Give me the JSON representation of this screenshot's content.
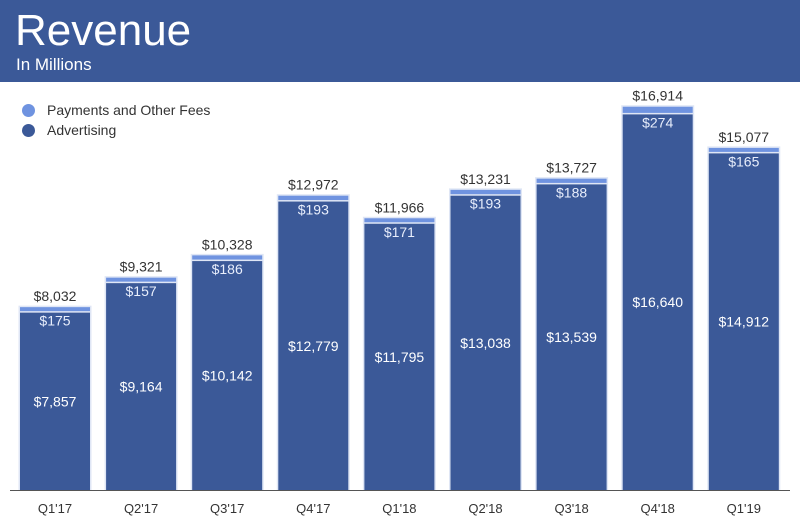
{
  "chart_data": {
    "type": "bar",
    "stacked": true,
    "title": "Revenue",
    "subtitle": "In Millions",
    "categories": [
      "Q1'17",
      "Q2'17",
      "Q3'17",
      "Q4'17",
      "Q1'18",
      "Q2'18",
      "Q3'18",
      "Q4'18",
      "Q1'19"
    ],
    "series": [
      {
        "name": "Advertising",
        "color": "#3b5998",
        "values": [
          7857,
          9164,
          10142,
          12779,
          11795,
          13038,
          13539,
          16640,
          14912
        ]
      },
      {
        "name": "Payments and Other Fees",
        "color": "#6f93e0",
        "values": [
          175,
          157,
          186,
          193,
          171,
          193,
          188,
          274,
          165
        ]
      }
    ],
    "totals": [
      8032,
      9321,
      10328,
      12972,
      11966,
      13231,
      13727,
      16914,
      15077
    ],
    "value_prefix": "$",
    "legend_position": "top-left",
    "grid": false
  }
}
